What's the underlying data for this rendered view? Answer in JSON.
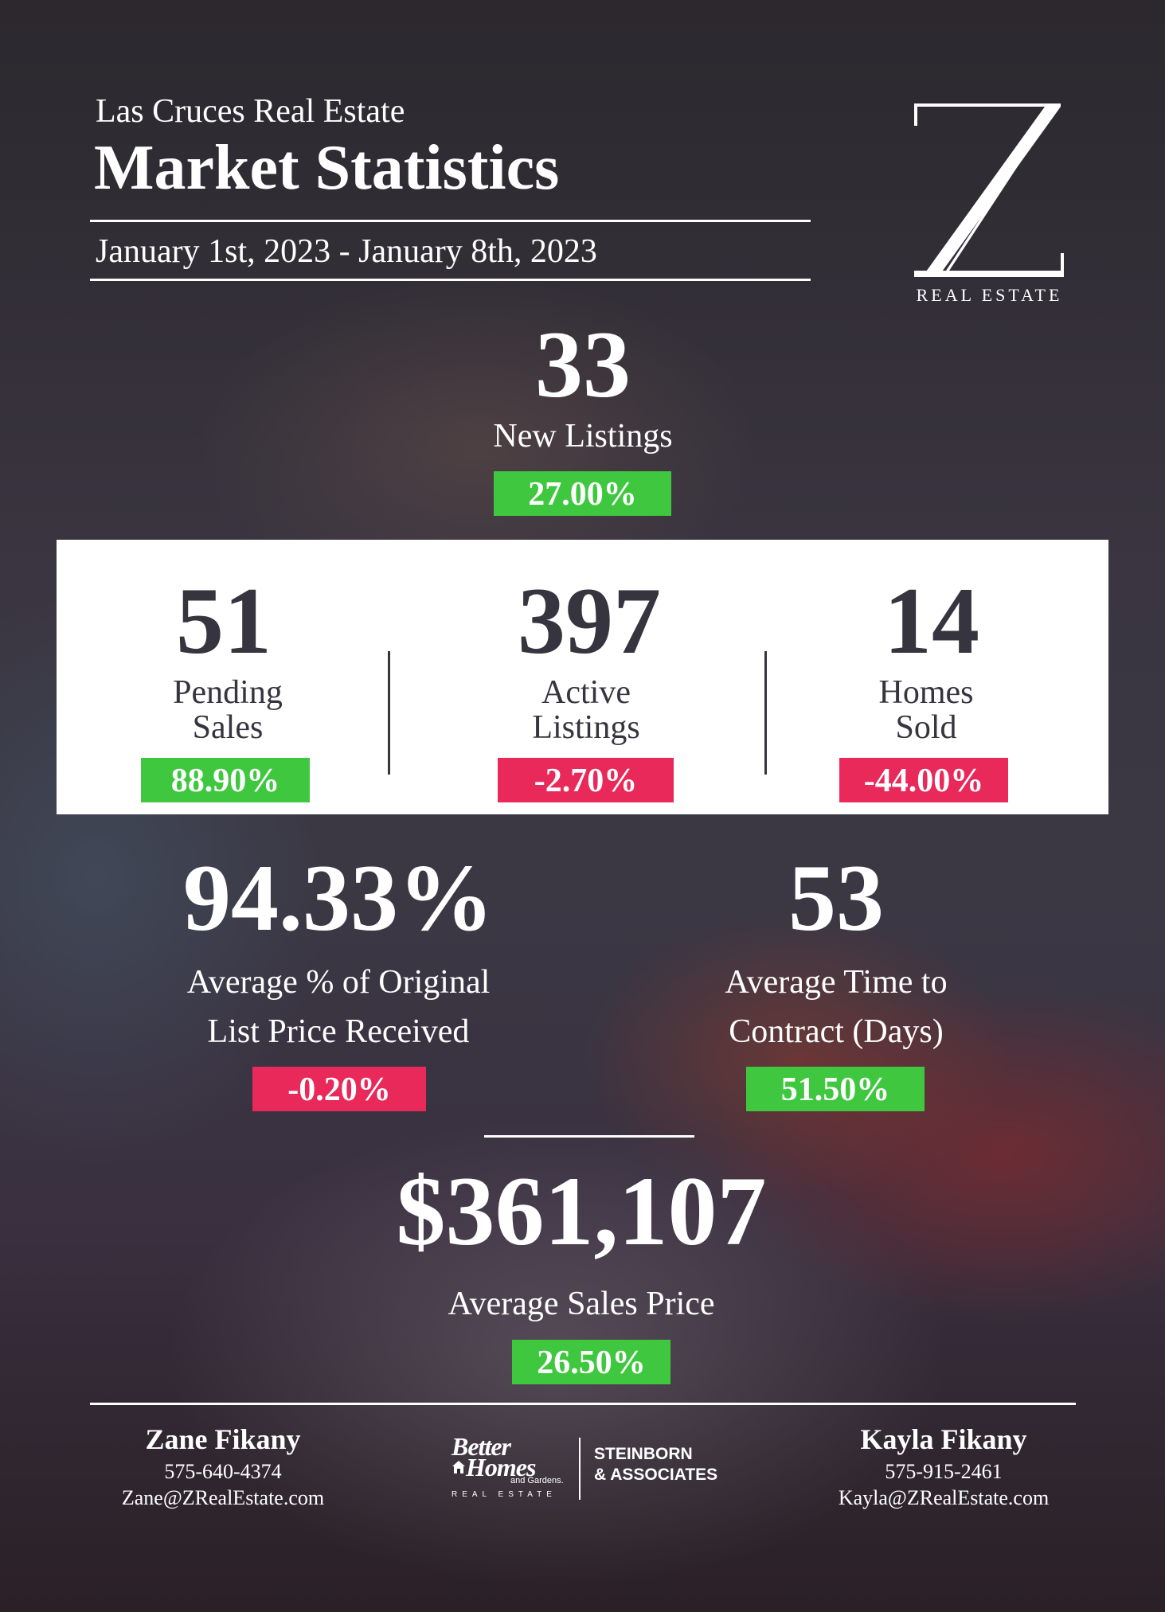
{
  "header": {
    "kicker": "Las Cruces Real Estate",
    "title": "Market Statistics",
    "date_range": "January 1st, 2023 - January 8th, 2023"
  },
  "logo": {
    "mark": "Z",
    "text": "REAL ESTATE"
  },
  "new_listings": {
    "value": "33",
    "label": "New Listings",
    "change": "27.00%",
    "change_color": "#3fc83f"
  },
  "panel": {
    "pending": {
      "value": "51",
      "label_line1": "Pending",
      "label_line2": "Sales",
      "change": "88.90%",
      "change_color": "#3fc83f"
    },
    "active": {
      "value": "397",
      "label_line1": "Active",
      "label_line2": "Listings",
      "change": "-2.70%",
      "change_color": "#e8295a"
    },
    "sold": {
      "value": "14",
      "label_line1": "Homes",
      "label_line2": "Sold",
      "change": "-44.00%",
      "change_color": "#e8295a"
    }
  },
  "list_price": {
    "value": "94.33%",
    "label_line1": "Average % of Original",
    "label_line2": "List Price Received",
    "change": "-0.20%",
    "change_color": "#e8295a"
  },
  "time_to_contract": {
    "value": "53",
    "label_line1": "Average Time to",
    "label_line2": "Contract (Days)",
    "change": "51.50%",
    "change_color": "#3fc83f"
  },
  "sales_price": {
    "value": "$361,107",
    "label": "Average Sales Price",
    "change": "26.50%",
    "change_color": "#3fc83f"
  },
  "footer": {
    "agent_left": {
      "name": "Zane Fikany",
      "phone": "575-640-4374",
      "email": "Zane@ZRealEstate.com"
    },
    "agent_right": {
      "name": "Kayla Fikany",
      "phone": "575-915-2461",
      "email": "Kayla@ZRealEstate.com"
    },
    "brokerage": {
      "line1": "Better",
      "line2": "Homes",
      "line3": "and Gardens.",
      "line4": "REAL ESTATE",
      "partner_line1": "STEINBORN",
      "partner_line2": "& ASSOCIATES"
    }
  }
}
